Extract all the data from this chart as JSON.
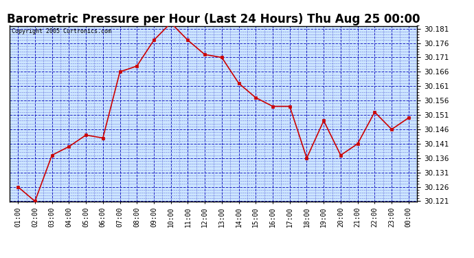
{
  "title": "Barometric Pressure per Hour (Last 24 Hours) Thu Aug 25 00:00",
  "copyright": "Copyright 2005 Curtronics.com",
  "x_labels": [
    "01:00",
    "02:00",
    "03:00",
    "04:00",
    "05:00",
    "06:00",
    "07:00",
    "08:00",
    "09:00",
    "10:00",
    "11:00",
    "12:00",
    "13:00",
    "14:00",
    "15:00",
    "16:00",
    "17:00",
    "18:00",
    "19:00",
    "20:00",
    "21:00",
    "22:00",
    "23:00",
    "00:00"
  ],
  "y_values": [
    30.126,
    30.121,
    30.137,
    30.14,
    30.144,
    30.143,
    30.166,
    30.168,
    30.177,
    30.183,
    30.177,
    30.172,
    30.171,
    30.162,
    30.157,
    30.154,
    30.154,
    30.136,
    30.149,
    30.137,
    30.141,
    30.152,
    30.146,
    30.15
  ],
  "line_color": "#cc0000",
  "marker_color": "#cc0000",
  "background_color": "#cce5ff",
  "grid_major_color": "#0000bb",
  "grid_minor_color": "#aaaadd",
  "title_fontsize": 12,
  "ylim": [
    30.121,
    30.182
  ],
  "ytick_step": 0.005,
  "fig_bg_color": "#ffffff",
  "border_color": "#000000"
}
